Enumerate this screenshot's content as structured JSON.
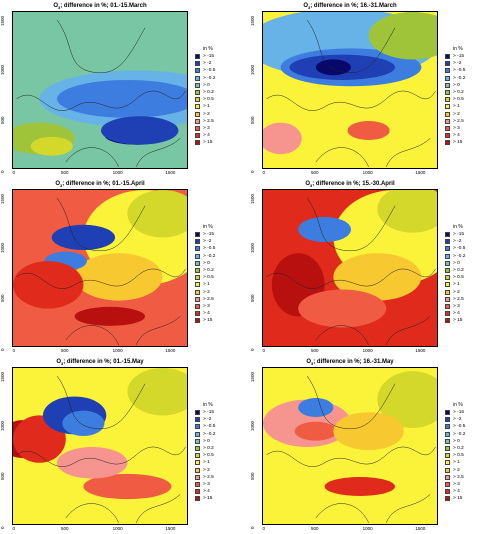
{
  "legend": {
    "title": "in %",
    "items": [
      {
        "label": "> -15",
        "color": "#08086b"
      },
      {
        "label": "> -2",
        "color": "#1f3fb5"
      },
      {
        "label": "> -0.5",
        "color": "#3d7de0"
      },
      {
        "label": "> -0.2",
        "color": "#67b3e8"
      },
      {
        "label": "> 0",
        "color": "#78c6a3"
      },
      {
        "label": "> 0.2",
        "color": "#9fc43a"
      },
      {
        "label": "> 0.5",
        "color": "#d4d82a"
      },
      {
        "label": "> 1",
        "color": "#fbf33a"
      },
      {
        "label": "> 2",
        "color": "#f8c830"
      },
      {
        "label": "> 2.5",
        "color": "#f6948f"
      },
      {
        "label": "> 3",
        "color": "#ef5b43"
      },
      {
        "label": "> 4",
        "color": "#df2a1c"
      },
      {
        "label": "> 15",
        "color": "#b80f0f"
      }
    ]
  },
  "axes": {
    "x_ticks": [
      "0",
      "500",
      "1000",
      "1500"
    ],
    "y_ticks": [
      "0",
      "500",
      "1000",
      "1500"
    ]
  },
  "panels": [
    {
      "title_prefix": "O",
      "title_sub": "3",
      "title_rest": "; difference in %; 01.-15.March",
      "base": "#78c6a3",
      "blobs": [
        [
          "#67b3e8",
          0.7,
          0.55,
          0.55,
          0.18
        ],
        [
          "#3d7de0",
          0.65,
          0.55,
          0.4,
          0.12
        ],
        [
          "#08086b",
          0.7,
          0.78,
          0.18,
          0.06
        ],
        [
          "#1f3fb5",
          0.72,
          0.75,
          0.22,
          0.09
        ],
        [
          "#9fc43a",
          0.15,
          0.8,
          0.2,
          0.1
        ],
        [
          "#d4d82a",
          0.22,
          0.85,
          0.12,
          0.06
        ]
      ]
    },
    {
      "title_prefix": "O",
      "title_sub": "3",
      "title_rest": "; difference in %; 16.-31.March",
      "base": "#fbf33a",
      "blobs": [
        [
          "#67b3e8",
          0.45,
          0.2,
          0.55,
          0.22
        ],
        [
          "#3d7de0",
          0.5,
          0.35,
          0.4,
          0.12
        ],
        [
          "#1f3fb5",
          0.45,
          0.35,
          0.3,
          0.08
        ],
        [
          "#08086b",
          0.4,
          0.35,
          0.1,
          0.05
        ],
        [
          "#9fc43a",
          0.85,
          0.15,
          0.25,
          0.15
        ],
        [
          "#f6948f",
          0.1,
          0.8,
          0.12,
          0.1
        ],
        [
          "#ef5b43",
          0.6,
          0.75,
          0.12,
          0.06
        ]
      ]
    },
    {
      "title_prefix": "O",
      "title_sub": "3",
      "title_rest": "; difference in %; 01.-15.April",
      "base": "#ef5b43",
      "blobs": [
        [
          "#fbf33a",
          0.75,
          0.3,
          0.35,
          0.3
        ],
        [
          "#d4d82a",
          0.85,
          0.15,
          0.2,
          0.15
        ],
        [
          "#f8c830",
          0.6,
          0.55,
          0.25,
          0.15
        ],
        [
          "#1f3fb5",
          0.4,
          0.3,
          0.18,
          0.08
        ],
        [
          "#3d7de0",
          0.3,
          0.45,
          0.12,
          0.06
        ],
        [
          "#b80f0f",
          0.55,
          0.8,
          0.2,
          0.06
        ],
        [
          "#df2a1c",
          0.2,
          0.6,
          0.2,
          0.15
        ]
      ]
    },
    {
      "title_prefix": "O",
      "title_sub": "3",
      "title_rest": "; difference in %; 15.-30.April",
      "base": "#df2a1c",
      "blobs": [
        [
          "#fbf33a",
          0.75,
          0.3,
          0.35,
          0.3
        ],
        [
          "#d4d82a",
          0.85,
          0.12,
          0.2,
          0.15
        ],
        [
          "#f8c830",
          0.65,
          0.55,
          0.25,
          0.15
        ],
        [
          "#3d7de0",
          0.35,
          0.25,
          0.15,
          0.08
        ],
        [
          "#b80f0f",
          0.2,
          0.6,
          0.15,
          0.2
        ],
        [
          "#ef5b43",
          0.45,
          0.75,
          0.25,
          0.12
        ]
      ]
    },
    {
      "title_prefix": "O",
      "title_sub": "3",
      "title_rest": "; difference in %; 01.-15.May",
      "base": "#fbf33a",
      "blobs": [
        [
          "#b80f0f",
          0.05,
          0.45,
          0.12,
          0.12
        ],
        [
          "#df2a1c",
          0.15,
          0.45,
          0.15,
          0.15
        ],
        [
          "#1f3fb5",
          0.35,
          0.3,
          0.18,
          0.12
        ],
        [
          "#3d7de0",
          0.4,
          0.35,
          0.12,
          0.08
        ],
        [
          "#ef5b43",
          0.65,
          0.75,
          0.25,
          0.08
        ],
        [
          "#f6948f",
          0.45,
          0.6,
          0.2,
          0.1
        ],
        [
          "#d4d82a",
          0.85,
          0.15,
          0.2,
          0.15
        ]
      ]
    },
    {
      "title_prefix": "O",
      "title_sub": "3",
      "title_rest": "; difference in %; 16.-31.May",
      "base": "#fbf33a",
      "blobs": [
        [
          "#f6948f",
          0.25,
          0.35,
          0.25,
          0.15
        ],
        [
          "#ef5b43",
          0.3,
          0.4,
          0.12,
          0.06
        ],
        [
          "#3d7de0",
          0.3,
          0.25,
          0.1,
          0.06
        ],
        [
          "#df2a1c",
          0.55,
          0.75,
          0.2,
          0.06
        ],
        [
          "#d4d82a",
          0.85,
          0.2,
          0.2,
          0.18
        ],
        [
          "#f8c830",
          0.6,
          0.4,
          0.2,
          0.12
        ]
      ]
    }
  ]
}
